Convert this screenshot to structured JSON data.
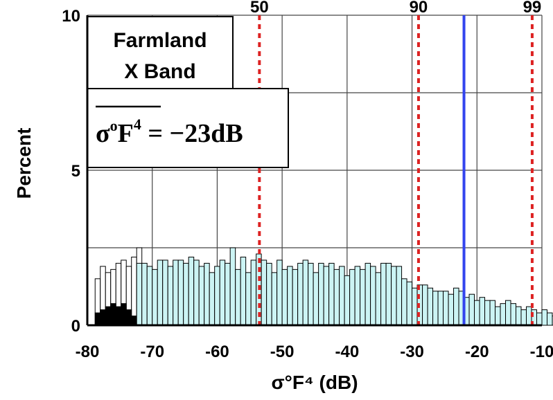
{
  "chart_data": {
    "type": "bar",
    "title": "",
    "xlabel": "σ°F⁴ (dB)",
    "ylabel": "Percent",
    "xlim": [
      -80,
      -10
    ],
    "ylim": [
      0,
      10
    ],
    "x_ticks": [
      "-80",
      "-70",
      "-60",
      "-50",
      "-40",
      "-30",
      "-20",
      "-10"
    ],
    "x_tick_values": [
      -80,
      -70,
      -60,
      -50,
      -40,
      -30,
      -20,
      -10
    ],
    "y_ticks": [
      "0",
      "5",
      "10"
    ],
    "y_tick_values": [
      0,
      5,
      10
    ],
    "grid": true,
    "grid_y_values": [
      0,
      2.5,
      5,
      7.5,
      10
    ],
    "annotation_box": {
      "line1": "Farmland",
      "line2": "X Band"
    },
    "mean_box": {
      "sigma": "σ",
      "o": "o",
      "F": "F",
      "exp": "4",
      "eq": " = −23dB"
    },
    "mean_line": {
      "x": -22,
      "color": "#3344ee"
    },
    "percentile_lines": {
      "color": "#dd2222",
      "x": [
        -53.5,
        -29,
        -11.5
      ],
      "labels": [
        "50",
        "90",
        "99"
      ]
    },
    "colors": {
      "main": "#ccf4f4",
      "open": "#ffffff",
      "solid": "#000000",
      "edge": "#000000"
    },
    "bin_width": 0.8,
    "main_bins": {
      "x_start": -72.4,
      "values": [
        2.0,
        2.0,
        1.9,
        1.8,
        2.1,
        2.1,
        1.9,
        2.1,
        2.1,
        2.0,
        2.2,
        2.1,
        1.9,
        2.0,
        1.7,
        1.9,
        2.1,
        2.0,
        2.5,
        1.8,
        2.2,
        1.7,
        2.1,
        2.3,
        2.1,
        2.0,
        1.7,
        2.1,
        1.8,
        1.9,
        1.8,
        2.0,
        2.1,
        2.0,
        1.7,
        2.0,
        1.9,
        2.0,
        1.8,
        1.9,
        1.6,
        1.8,
        1.9,
        1.8,
        2.0,
        1.9,
        1.7,
        2.0,
        2.0,
        1.9,
        1.9,
        1.5,
        1.4,
        1.2,
        1.3,
        1.3,
        1.2,
        1.1,
        1.1,
        1.1,
        1.0,
        1.2,
        1.1,
        0.9,
        1.0,
        0.8,
        0.9,
        0.8,
        0.8,
        0.6,
        0.7,
        0.8,
        0.7,
        0.6,
        0.5,
        0.6,
        0.5,
        0.4,
        0.5,
        0.4,
        0.3,
        0.3,
        0.3,
        0.2
      ]
    },
    "open_bins": {
      "x_start": -78.8,
      "values": [
        1.5,
        1.9,
        1.7,
        1.8,
        2.0,
        2.1,
        1.9,
        2.2,
        2.5
      ]
    },
    "solid_bins": {
      "x_start": -78.8,
      "values": [
        0.4,
        0.5,
        0.6,
        0.7,
        0.6,
        0.7,
        0.5,
        0.3
      ]
    }
  }
}
